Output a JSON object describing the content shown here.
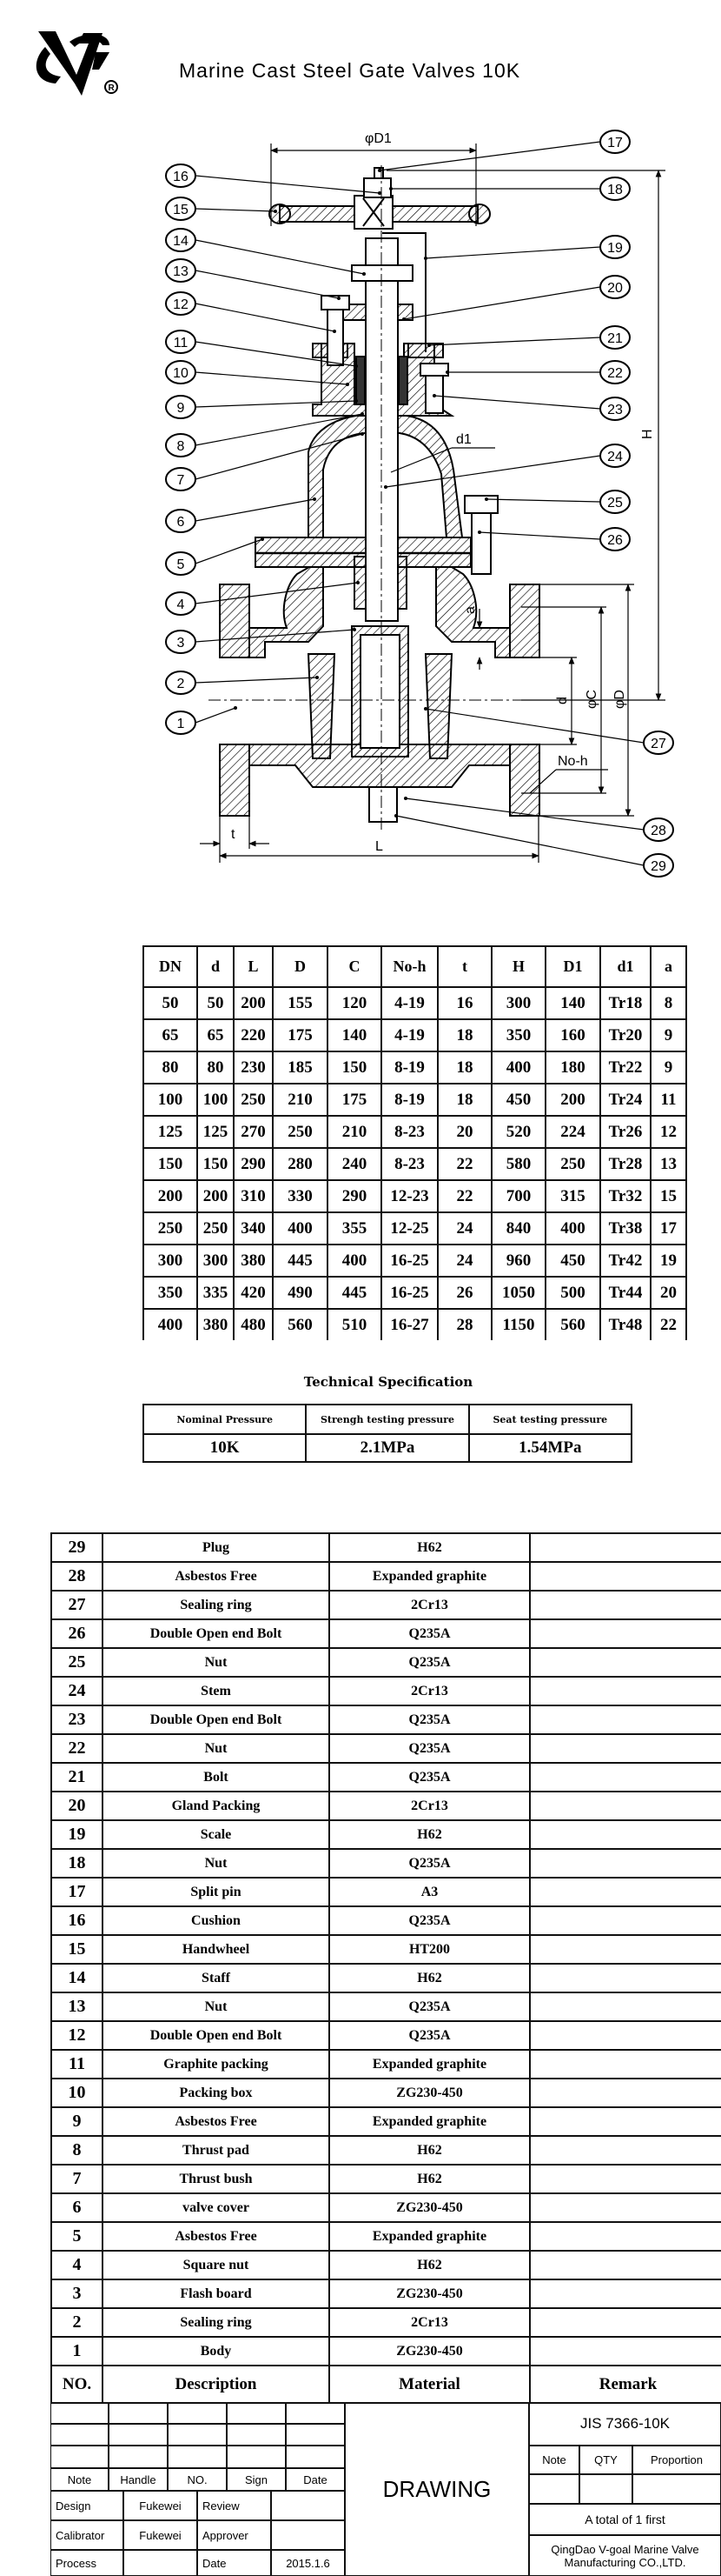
{
  "logo": {
    "letters": "VG",
    "mark": "®"
  },
  "title": "Marine Cast Steel Gate Valves 10K",
  "drawing": {
    "callouts": [
      "1",
      "2",
      "3",
      "4",
      "5",
      "6",
      "7",
      "8",
      "9",
      "10",
      "11",
      "12",
      "13",
      "14",
      "15",
      "16",
      "17",
      "18",
      "19",
      "20",
      "21",
      "22",
      "23",
      "24",
      "25",
      "26",
      "27",
      "28",
      "29"
    ],
    "dims": {
      "D1": "φD1",
      "H": "H",
      "D": "φD",
      "C": "φC",
      "d": "d",
      "d1": "d1",
      "noh": "No-h",
      "L": "L",
      "t": "t",
      "a": "a"
    }
  },
  "dimension_table": {
    "headers": [
      "DN",
      "d",
      "L",
      "D",
      "C",
      "No-h",
      "t",
      "H",
      "D1",
      "d1",
      "a"
    ],
    "rows": [
      [
        "50",
        "50",
        "200",
        "155",
        "120",
        "4-19",
        "16",
        "300",
        "140",
        "Tr18",
        "8"
      ],
      [
        "65",
        "65",
        "220",
        "175",
        "140",
        "4-19",
        "18",
        "350",
        "160",
        "Tr20",
        "9"
      ],
      [
        "80",
        "80",
        "230",
        "185",
        "150",
        "8-19",
        "18",
        "400",
        "180",
        "Tr22",
        "9"
      ],
      [
        "100",
        "100",
        "250",
        "210",
        "175",
        "8-19",
        "18",
        "450",
        "200",
        "Tr24",
        "11"
      ],
      [
        "125",
        "125",
        "270",
        "250",
        "210",
        "8-23",
        "20",
        "520",
        "224",
        "Tr26",
        "12"
      ],
      [
        "150",
        "150",
        "290",
        "280",
        "240",
        "8-23",
        "22",
        "580",
        "250",
        "Tr28",
        "13"
      ],
      [
        "200",
        "200",
        "310",
        "330",
        "290",
        "12-23",
        "22",
        "700",
        "315",
        "Tr32",
        "15"
      ],
      [
        "250",
        "250",
        "340",
        "400",
        "355",
        "12-25",
        "24",
        "840",
        "400",
        "Tr38",
        "17"
      ],
      [
        "300",
        "300",
        "380",
        "445",
        "400",
        "16-25",
        "24",
        "960",
        "450",
        "Tr42",
        "19"
      ],
      [
        "350",
        "335",
        "420",
        "490",
        "445",
        "16-25",
        "26",
        "1050",
        "500",
        "Tr44",
        "20"
      ],
      [
        "400",
        "380",
        "480",
        "560",
        "510",
        "16-27",
        "28",
        "1150",
        "560",
        "Tr48",
        "22"
      ]
    ]
  },
  "technical_specification": {
    "title": "Technical Specification",
    "headers": [
      "Nominal Pressure",
      "Strengh testing pressure",
      "Seat testing pressure"
    ],
    "values": [
      "10K",
      "2.1MPa",
      "1.54MPa"
    ]
  },
  "parts_list": {
    "headers": [
      "NO.",
      "Description",
      "Material",
      "Remark"
    ],
    "rows": [
      [
        "29",
        "Plug",
        "H62"
      ],
      [
        "28",
        "Asbestos Free",
        "Expanded graphite"
      ],
      [
        "27",
        "Sealing ring",
        "2Cr13"
      ],
      [
        "26",
        "Double Open end Bolt",
        "Q235A"
      ],
      [
        "25",
        "Nut",
        "Q235A"
      ],
      [
        "24",
        "Stem",
        "2Cr13"
      ],
      [
        "23",
        "Double Open end Bolt",
        "Q235A"
      ],
      [
        "22",
        "Nut",
        "Q235A"
      ],
      [
        "21",
        "Bolt",
        "Q235A"
      ],
      [
        "20",
        "Gland Packing",
        "2Cr13"
      ],
      [
        "19",
        "Scale",
        "H62"
      ],
      [
        "18",
        "Nut",
        "Q235A"
      ],
      [
        "17",
        "Split pin",
        "A3"
      ],
      [
        "16",
        "Cushion",
        "Q235A"
      ],
      [
        "15",
        "Handwheel",
        "HT200"
      ],
      [
        "14",
        "Staff",
        "H62"
      ],
      [
        "13",
        "Nut",
        "Q235A"
      ],
      [
        "12",
        "Double Open end Bolt",
        "Q235A"
      ],
      [
        "11",
        "Graphite packing",
        "Expanded graphite"
      ],
      [
        "10",
        "Packing box",
        "ZG230-450"
      ],
      [
        "9",
        "Asbestos Free",
        "Expanded graphite"
      ],
      [
        "8",
        "Thrust pad",
        "H62"
      ],
      [
        "7",
        "Thrust bush",
        "H62"
      ],
      [
        "6",
        "valve cover",
        "ZG230-450"
      ],
      [
        "5",
        "Asbestos Free",
        "Expanded graphite"
      ],
      [
        "4",
        "Square nut",
        "H62"
      ],
      [
        "3",
        "Flash board",
        "ZG230-450"
      ],
      [
        "2",
        "Sealing ring",
        "2Cr13"
      ],
      [
        "1",
        "Body",
        "ZG230-450"
      ]
    ]
  },
  "title_block": {
    "rev_headers": [
      "Note",
      "Handle",
      "NO.",
      "Sign",
      "Date"
    ],
    "design_label": "Design",
    "design_value": "Fukewei",
    "review_label": "Review",
    "calibrator_label": "Calibrator",
    "calibrator_value": "Fukewei",
    "approver_label": "Approver",
    "process_label": "Process",
    "date_label": "Date",
    "date_value": "2015.1.6",
    "drawing": "DRAWING",
    "standard": "JIS 7366-10K",
    "info_headers": [
      "Note",
      "QTY",
      "Proportion"
    ],
    "total": "A total of 1 first",
    "company_line1": "QingDao V-goal Marine Valve",
    "company_line2": "Manufacturing CO.,LTD."
  }
}
